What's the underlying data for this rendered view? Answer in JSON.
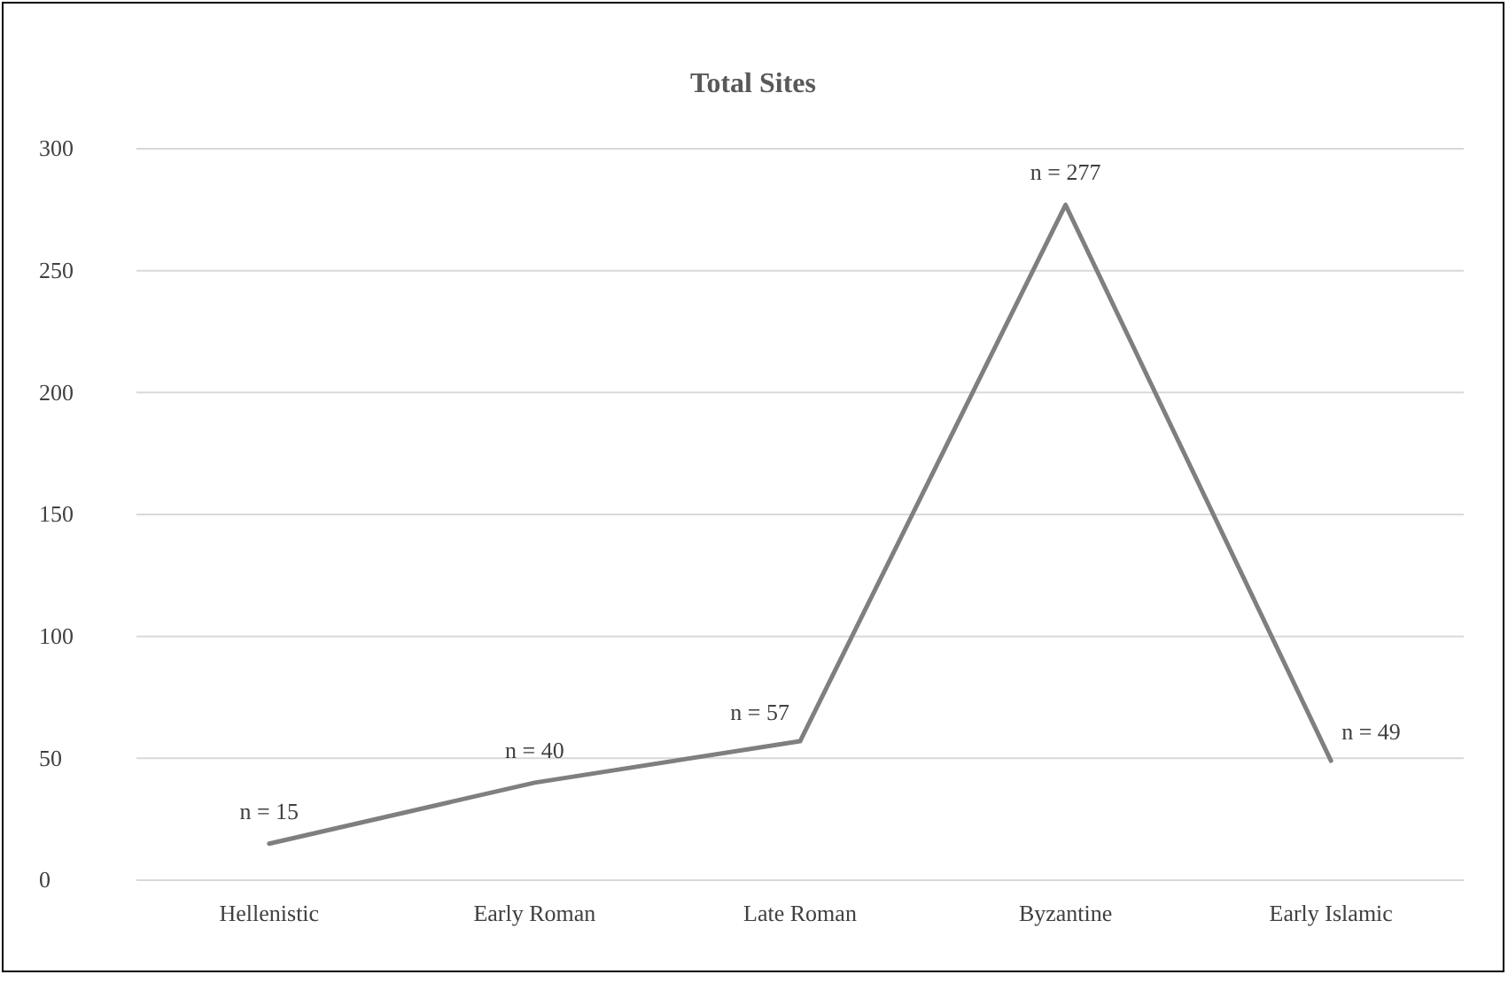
{
  "chart_data": {
    "type": "line",
    "title": "Total Sites",
    "categories": [
      "Hellenistic",
      "Early Roman",
      "Late Roman",
      "Byzantine",
      "Early Islamic"
    ],
    "series": [
      {
        "color": "#7f7f7f",
        "values": [
          15,
          40,
          57,
          277,
          49
        ],
        "value_labels": [
          "n = 15",
          "n = 40",
          "n = 57",
          "n = 277",
          "n = 49"
        ]
      }
    ],
    "ylim": [
      0,
      300
    ],
    "yticks": [
      0,
      50,
      100,
      150,
      200,
      250,
      300
    ],
    "grid": "y",
    "marker": "none",
    "line_style": "solid"
  }
}
